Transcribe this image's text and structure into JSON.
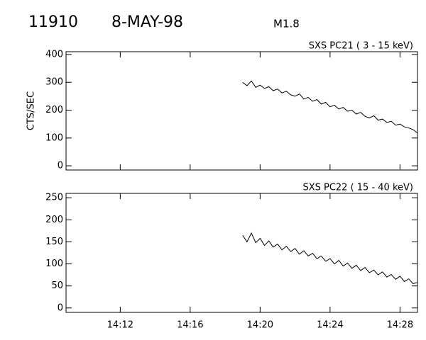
{
  "header": {
    "event": "11910",
    "date": "8-MAY-98",
    "class": "M1.8"
  },
  "chart_data": [
    {
      "type": "line",
      "title": "SXS PC21  (  3 - 15 keV)",
      "ylabel": "CTS/SEC",
      "color": "#000000",
      "xlim": [
        848.9,
        869
      ],
      "xticks": [
        852,
        856,
        860,
        864,
        868
      ],
      "ylim": [
        -15,
        410
      ],
      "yticks": [
        0,
        100,
        200,
        300,
        400
      ],
      "x": [
        859,
        859.25,
        859.5,
        859.75,
        860,
        860.25,
        860.5,
        860.75,
        861,
        861.25,
        861.5,
        861.75,
        862,
        862.25,
        862.5,
        862.75,
        863,
        863.25,
        863.5,
        863.75,
        864,
        864.25,
        864.5,
        864.75,
        865,
        865.25,
        865.5,
        865.75,
        866,
        866.25,
        866.5,
        866.75,
        867,
        867.25,
        867.5,
        867.75,
        868,
        868.25,
        868.5,
        868.75,
        869
      ],
      "values": [
        300,
        288,
        305,
        282,
        290,
        278,
        284,
        270,
        276,
        262,
        268,
        255,
        250,
        258,
        240,
        246,
        232,
        238,
        222,
        228,
        212,
        218,
        204,
        210,
        196,
        200,
        186,
        192,
        178,
        172,
        180,
        164,
        168,
        156,
        160,
        146,
        150,
        140,
        136,
        130,
        118
      ]
    },
    {
      "type": "line",
      "title": "SXS PC22  ( 15 - 40 keV)",
      "color": "#000000",
      "xlim": [
        848.9,
        869
      ],
      "xticks": [
        {
          "value": 852,
          "label": "14:12"
        },
        {
          "value": 856,
          "label": "14:16"
        },
        {
          "value": 860,
          "label": "14:20"
        },
        {
          "value": 864,
          "label": "14:24"
        },
        {
          "value": 868,
          "label": "14:28"
        }
      ],
      "ylim": [
        -10,
        260
      ],
      "yticks": [
        0,
        50,
        100,
        150,
        200,
        250
      ],
      "x": [
        859,
        859.25,
        859.5,
        859.75,
        860,
        860.25,
        860.5,
        860.75,
        861,
        861.25,
        861.5,
        861.75,
        862,
        862.25,
        862.5,
        862.75,
        863,
        863.25,
        863.5,
        863.75,
        864,
        864.25,
        864.5,
        864.75,
        865,
        865.25,
        865.5,
        865.75,
        866,
        866.25,
        866.5,
        866.75,
        867,
        867.25,
        867.5,
        867.75,
        868,
        868.25,
        868.5,
        868.75,
        869
      ],
      "values": [
        165,
        150,
        170,
        148,
        158,
        142,
        152,
        138,
        145,
        132,
        140,
        128,
        135,
        122,
        130,
        118,
        124,
        112,
        118,
        106,
        112,
        100,
        108,
        95,
        102,
        90,
        97,
        85,
        92,
        80,
        86,
        75,
        82,
        70,
        76,
        65,
        72,
        60,
        66,
        55,
        58
      ]
    }
  ]
}
